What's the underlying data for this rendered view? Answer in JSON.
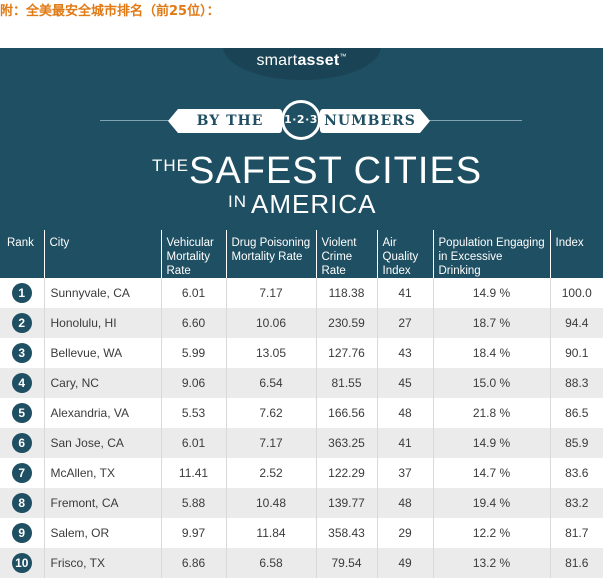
{
  "caption": "附：全美最安全城市排名（前25位）：",
  "banner": {
    "logo_part1": "smart",
    "logo_part2": "asset",
    "logo_tm": "™",
    "ribbon_left": "BY THE",
    "badge": "1·2·3",
    "ribbon_right": "NUMBERS",
    "title_the": "THE",
    "title_main": "SAFEST CITIES",
    "title_in": "IN",
    "title_country": "AMERICA"
  },
  "colors": {
    "primary": "#1f4f62",
    "caption": "#e07a16",
    "stripe": "#ebebeb"
  },
  "table": {
    "headers": {
      "rank": "Rank",
      "city": "City",
      "vehicular": "Vehicular Mortality Rate",
      "drug": "Drug Poisoning Mortality Rate",
      "crime": "Violent Crime Rate",
      "air": "Air Quality Index",
      "drinking": "Population Engaging in Excessive Drinking",
      "index": "Index"
    },
    "rows": [
      {
        "rank": "1",
        "city": "Sunnyvale, CA",
        "vehicular": "6.01",
        "drug": "7.17",
        "crime": "118.38",
        "air": "41",
        "drinking": "14.9 %",
        "index": "100.0"
      },
      {
        "rank": "2",
        "city": "Honolulu, HI",
        "vehicular": "6.60",
        "drug": "10.06",
        "crime": "230.59",
        "air": "27",
        "drinking": "18.7 %",
        "index": "94.4"
      },
      {
        "rank": "3",
        "city": "Bellevue, WA",
        "vehicular": "5.99",
        "drug": "13.05",
        "crime": "127.76",
        "air": "43",
        "drinking": "18.4 %",
        "index": "90.1"
      },
      {
        "rank": "4",
        "city": "Cary, NC",
        "vehicular": "9.06",
        "drug": "6.54",
        "crime": "81.55",
        "air": "45",
        "drinking": "15.0 %",
        "index": "88.3"
      },
      {
        "rank": "5",
        "city": "Alexandria, VA",
        "vehicular": "5.53",
        "drug": "7.62",
        "crime": "166.56",
        "air": "48",
        "drinking": "21.8 %",
        "index": "86.5"
      },
      {
        "rank": "6",
        "city": "San Jose, CA",
        "vehicular": "6.01",
        "drug": "7.17",
        "crime": "363.25",
        "air": "41",
        "drinking": "14.9 %",
        "index": "85.9"
      },
      {
        "rank": "7",
        "city": "McAllen, TX",
        "vehicular": "11.41",
        "drug": "2.52",
        "crime": "122.29",
        "air": "37",
        "drinking": "14.7 %",
        "index": "83.6"
      },
      {
        "rank": "8",
        "city": "Fremont, CA",
        "vehicular": "5.88",
        "drug": "10.48",
        "crime": "139.77",
        "air": "48",
        "drinking": "19.4 %",
        "index": "83.2"
      },
      {
        "rank": "9",
        "city": "Salem, OR",
        "vehicular": "9.97",
        "drug": "11.84",
        "crime": "358.43",
        "air": "29",
        "drinking": "12.2 %",
        "index": "81.7"
      },
      {
        "rank": "10",
        "city": "Frisco, TX",
        "vehicular": "6.86",
        "drug": "6.58",
        "crime": "79.54",
        "air": "49",
        "drinking": "13.2 %",
        "index": "81.6"
      }
    ]
  }
}
